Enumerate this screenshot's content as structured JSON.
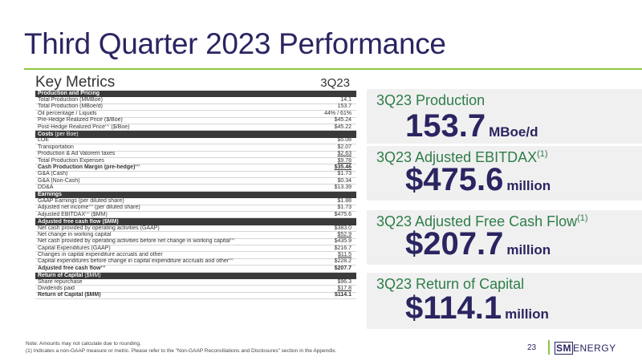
{
  "page": {
    "title": "Third Quarter 2023 Performance",
    "page_number": "23"
  },
  "key_metrics": {
    "heading": "Key Metrics",
    "column": "3Q23",
    "rows": [
      {
        "label": "Production and Pricing",
        "value": "",
        "type": "sec"
      },
      {
        "label": "Total Production (MMBoe)",
        "value": "14.1"
      },
      {
        "label": "Total Production (MBoe/d)",
        "value": "153.7"
      },
      {
        "label": "Oil percentage / Liquids",
        "value": "44% / 61%"
      },
      {
        "label": "Pre-Hedge Realized Price ($/Boe)",
        "value": "$45.24"
      },
      {
        "label": "Post-Hedge Realized Price",
        "sup": "(1)",
        "suffix": " ($/Boe)",
        "value": "$45.22"
      },
      {
        "label": "Costs",
        "suffix": " (per Boe)",
        "value": "",
        "type": "sec"
      },
      {
        "label": "LOE",
        "value": "$5.08"
      },
      {
        "label": "Transportation",
        "value": "$2.07"
      },
      {
        "label": "Production & Ad Valorem taxes",
        "value": "$2.63",
        "ul": true
      },
      {
        "label": "Total Production Expenses",
        "value": "$9.78",
        "ul": true
      },
      {
        "label": "Cash Production Margin (pre-hedge)",
        "sup": "(1)",
        "value": "$35.46",
        "type": "bold",
        "ul": true
      },
      {
        "label": "G&A (Cash)",
        "value": "$1.73"
      },
      {
        "label": "G&A (Non-Cash)",
        "value": "$0.34"
      },
      {
        "label": "DD&A",
        "value": "$13.39"
      },
      {
        "label": "Earnings",
        "value": "",
        "type": "sec"
      },
      {
        "label": "GAAP Earnings (per diluted share)",
        "value": "$1.88"
      },
      {
        "label": "Adjusted net income",
        "sup": "(1)",
        "suffix": " (per diluted share)",
        "value": "$1.73"
      },
      {
        "label": "Adjusted EBITDAX",
        "sup": "(1)",
        "suffix": " ($MM)",
        "value": "$475.6"
      },
      {
        "label": "Adjusted free cash flow ($MM)",
        "value": "",
        "type": "sec"
      },
      {
        "label": "Net cash provided by operating activities (GAAP)",
        "value": "$383.0"
      },
      {
        "label": "Net change in working capital",
        "value": "$52.9",
        "ul": true
      },
      {
        "label": "Net cash provided by operating activities before net change in working capital",
        "sup": "(1)",
        "value": "$435.9"
      },
      {
        "label": "Capital Expenditures (GAAP)",
        "value": "$216.7"
      },
      {
        "label": "Changes in capital expenditure accruals and other",
        "value": "$11.5",
        "ul": true
      },
      {
        "label": "Capital expenditures before change in capital expenditure accruals and other",
        "sup": "(1)",
        "value": "$228.2"
      },
      {
        "label": "Adjusted free cash flow",
        "sup": "(1)",
        "value": "$207.7",
        "type": "bold"
      },
      {
        "label": "Return of Capital",
        "suffix": " ($MM)",
        "value": "",
        "type": "sec"
      },
      {
        "label": "Share repurchase",
        "value": "$96.3"
      },
      {
        "label": "Dividends paid",
        "value": "$17.8",
        "ul": true
      },
      {
        "label": "Return of Capital ($MM)",
        "value": "$114.1",
        "type": "bold"
      }
    ]
  },
  "highlights": [
    {
      "label": "3Q23 Production",
      "sup": "",
      "value": "153.7",
      "unit": "MBoe/d"
    },
    {
      "label": "3Q23 Adjusted EBITDAX",
      "sup": "(1)",
      "value": "$475.6",
      "unit": "million"
    },
    {
      "label": "3Q23 Adjusted Free Cash Flow",
      "sup": "(1)",
      "value": "$207.7",
      "unit": "million"
    },
    {
      "label": "3Q23 Return of Capital",
      "sup": "",
      "value": "$114.1",
      "unit": "million"
    }
  ],
  "footnotes": {
    "note": "Note: Amounts may not calculate due to rounding.",
    "one": "(1)   Indicates a non-GAAP measure or metric. Please refer to the \"Non-GAAP Reconciliations and Disclosures\" section in the Appendix."
  },
  "logo": {
    "sm": "SM",
    "rest": "ENERGY"
  },
  "colors": {
    "navy": "#2a2561",
    "green_rule": "#8dc63f",
    "label_green": "#2f7d4a",
    "section_bg": "#3a3a3a",
    "panel_bg": "#f0f0f0"
  }
}
